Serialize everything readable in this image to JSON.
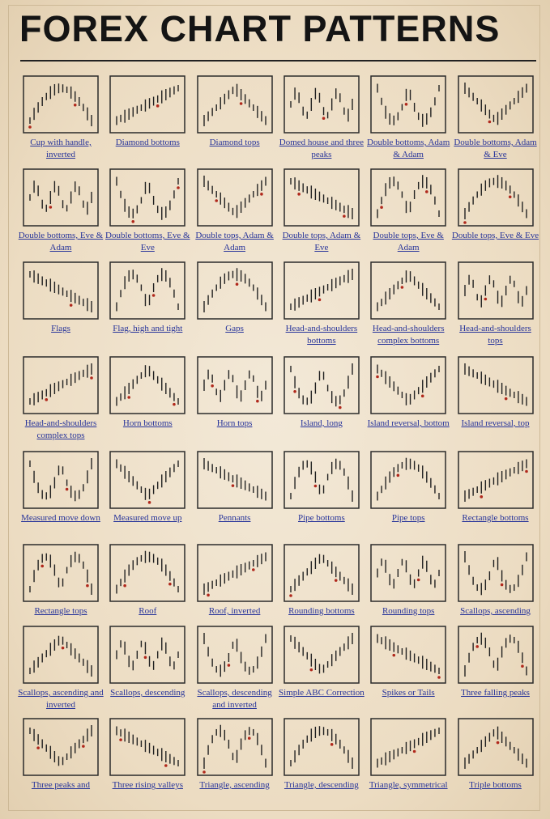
{
  "title": "FOREX CHART PATTERNS",
  "patterns": [
    "Cup with handle, inverted",
    "Diamond bottoms",
    "Diamond tops",
    "Domed house and three peaks",
    "Double bottoms, Adam & Adam",
    "Double bottoms, Adam & Eve",
    "Double bottoms, Eve & Adam",
    "Double bottoms, Eve & Eve",
    "Double tops, Adam & Adam",
    "Double tops, Adam & Eve",
    "Double tops, Eve & Adam",
    "Double tops, Eve & Eve",
    "Flags",
    "Flag, high and tight",
    "Gaps",
    "Head-and-shoulders bottoms",
    "Head-and-shoulders complex bottoms",
    "Head-and-shoulders tops",
    "Head-and-shoulders complex tops",
    "Horn bottoms",
    "Horn tops",
    "Island, long",
    "Island reversal, bottom",
    "Island reversal, top",
    "Measured move down",
    "Measured move up",
    "Pennants",
    "Pipe bottoms",
    "Pipe tops",
    "Rectangle bottoms",
    "Rectangle tops",
    "Roof",
    "Roof, inverted",
    "Rounding bottoms",
    "Rounding tops",
    "Scallops, ascending",
    "Scallops, ascending and inverted",
    "Scallops, descending",
    "Scallops, descending and inverted",
    "Simple ABC Correction",
    "Spikes or Tails",
    "Three falling peaks",
    "Three peaks and",
    "Three rising valleys",
    "Triangle, ascending",
    "Triangle, descending",
    "Triangle, symmetrical",
    "Triple bottoms"
  ]
}
